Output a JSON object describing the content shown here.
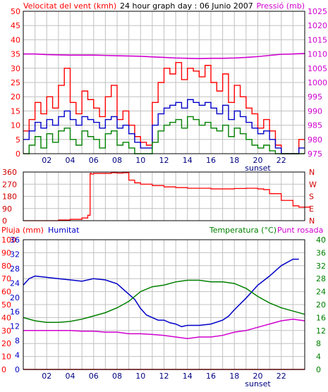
{
  "colors": {
    "background": "#ffffff",
    "frame": "#000000",
    "grid": "#c0c0c0",
    "red": "#ff0000",
    "red_dark": "#d00000",
    "blue": "#0000c8",
    "green": "#008000",
    "magenta": "#d000d0"
  },
  "chart_data": [
    {
      "type": "line",
      "title": "24 hour graph day : 06 Junio 2007",
      "ylabel_left": "Velocitat del vent (kmh)",
      "ylabel_right": "Pressió (mb)",
      "xticks": [
        "02",
        "04",
        "06",
        "08",
        "10",
        "12",
        "14",
        "16",
        "18",
        "20",
        "22"
      ],
      "x_marker": "sunset",
      "x_marker_hour": 20,
      "xlim": [
        0,
        24
      ],
      "ylim_left": [
        0,
        50
      ],
      "yticks_left": [
        0,
        5,
        10,
        15,
        20,
        25,
        30,
        35,
        40,
        45,
        50
      ],
      "ylim_right": [
        975,
        1025
      ],
      "yticks_right": [
        975,
        980,
        985,
        990,
        995,
        1000,
        1005,
        1010,
        1015,
        1020,
        1025
      ],
      "grid": true,
      "series": [
        {
          "axis": "left",
          "style": "gust",
          "color": "red",
          "x": [
            0,
            0.5,
            1,
            1.5,
            2,
            2.5,
            3,
            3.5,
            4,
            4.5,
            5,
            5.5,
            6,
            6.5,
            7,
            7.5,
            8,
            8.5,
            9,
            9.5,
            10,
            10.5,
            11,
            11.5,
            12,
            12.5,
            13,
            13.5,
            14,
            14.5,
            15,
            15.5,
            16,
            16.5,
            17,
            17.5,
            18,
            18.5,
            19,
            19.5,
            20,
            20.5,
            21,
            21.5,
            22,
            22.5,
            23,
            23.5
          ],
          "values": [
            8,
            12,
            18,
            14,
            20,
            16,
            24,
            30,
            18,
            14,
            22,
            19,
            16,
            13,
            20,
            24,
            12,
            15,
            10,
            6,
            4,
            3,
            18,
            25,
            30,
            28,
            32,
            26,
            30,
            29,
            27,
            31,
            25,
            22,
            28,
            18,
            24,
            20,
            16,
            14,
            9,
            12,
            8,
            3,
            0,
            0,
            0,
            5
          ]
        },
        {
          "axis": "left",
          "style": "average",
          "color": "blue",
          "x": [
            0,
            0.5,
            1,
            1.5,
            2,
            2.5,
            3,
            3.5,
            4,
            4.5,
            5,
            5.5,
            6,
            6.5,
            7,
            7.5,
            8,
            8.5,
            9,
            9.5,
            10,
            10.5,
            11,
            11.5,
            12,
            12.5,
            13,
            13.5,
            14,
            14.5,
            15,
            15.5,
            16,
            16.5,
            17,
            17.5,
            18,
            18.5,
            19,
            19.5,
            20,
            20.5,
            21,
            21.5,
            22,
            22.5,
            23,
            23.5
          ],
          "values": [
            5,
            8,
            11,
            9,
            12,
            10,
            13,
            15,
            12,
            10,
            13,
            12,
            11,
            9,
            12,
            13,
            9,
            10,
            7,
            4,
            2,
            2,
            10,
            14,
            16,
            17,
            18,
            16,
            19,
            18,
            17,
            18,
            16,
            14,
            17,
            12,
            15,
            13,
            11,
            9,
            7,
            8,
            5,
            2,
            0,
            0,
            0,
            2
          ]
        },
        {
          "axis": "left",
          "style": "minimum",
          "color": "green",
          "x": [
            0,
            0.5,
            1,
            1.5,
            2,
            2.5,
            3,
            3.5,
            4,
            4.5,
            5,
            5.5,
            6,
            6.5,
            7,
            7.5,
            8,
            8.5,
            9,
            9.5,
            10,
            10.5,
            11,
            11.5,
            12,
            12.5,
            13,
            13.5,
            14,
            14.5,
            15,
            15.5,
            16,
            16.5,
            17,
            17.5,
            18,
            18.5,
            19,
            19.5,
            20,
            20.5,
            21,
            21.5,
            22,
            22.5,
            23,
            23.5
          ],
          "values": [
            0,
            3,
            6,
            2,
            7,
            4,
            8,
            9,
            5,
            3,
            8,
            6,
            5,
            2,
            7,
            8,
            3,
            4,
            2,
            0,
            0,
            0,
            4,
            8,
            10,
            11,
            12,
            9,
            13,
            12,
            10,
            11,
            9,
            8,
            10,
            6,
            9,
            7,
            5,
            3,
            2,
            3,
            1,
            0,
            0,
            0,
            0,
            0
          ]
        },
        {
          "axis": "right",
          "name": "Pressió (mb)",
          "color": "magenta",
          "x": [
            0,
            1,
            2,
            3,
            4,
            5,
            6,
            7,
            8,
            9,
            10,
            11,
            12,
            13,
            14,
            15,
            16,
            17,
            18,
            19,
            20,
            21,
            22,
            23,
            24
          ],
          "values": [
            1010,
            1010,
            1009.8,
            1009.7,
            1009.6,
            1009.6,
            1009.6,
            1009.5,
            1009.4,
            1009.3,
            1009.2,
            1009,
            1008.8,
            1008.6,
            1008.5,
            1008.4,
            1008.5,
            1008.5,
            1008.6,
            1008.8,
            1009.1,
            1009.5,
            1009.9,
            1010,
            1010.2
          ]
        }
      ]
    },
    {
      "type": "line",
      "ylabel_left": "",
      "yticks_left": [
        "360",
        "270",
        "180",
        "90",
        "0"
      ],
      "yticks_right": [
        "N",
        "W",
        "S",
        "E",
        "N"
      ],
      "ylim": [
        0,
        360
      ],
      "xlim": [
        0,
        24
      ],
      "grid": true,
      "series": [
        {
          "color": "red",
          "x": [
            0,
            1,
            2,
            3,
            4,
            5,
            5.5,
            5.7,
            5.8,
            6,
            6.5,
            7,
            7.5,
            8,
            8.5,
            9,
            9.5,
            10,
            11,
            12,
            13,
            14,
            15,
            16,
            17,
            18,
            19,
            20,
            20.5,
            21,
            22,
            23,
            23.5
          ],
          "values": [
            0,
            0,
            0,
            5,
            10,
            20,
            40,
            350,
            345,
            350,
            350,
            350,
            355,
            352,
            355,
            300,
            280,
            270,
            260,
            250,
            245,
            240,
            240,
            235,
            235,
            238,
            240,
            235,
            230,
            200,
            150,
            110,
            100
          ]
        }
      ]
    },
    {
      "type": "line",
      "ylabel_left_1": "Pluja (mm)",
      "ylabel_left_2": "Humitat",
      "ylabel_right_1": "Temperatura (°C)",
      "ylabel_right_2": "Punt rosada",
      "xticks": [
        "02",
        "04",
        "06",
        "08",
        "10",
        "12",
        "14",
        "16",
        "18",
        "20",
        "22"
      ],
      "x_marker": "sunset",
      "x_marker_hour": 20,
      "xlim": [
        0,
        24
      ],
      "yticks_left_rain": [
        0,
        10,
        20,
        30,
        40,
        50,
        60,
        70,
        80,
        90,
        100
      ],
      "yticks_left_hum": [
        0,
        4,
        8,
        12,
        16,
        20,
        24,
        28,
        32,
        36
      ],
      "yticks_right": [
        0,
        4,
        8,
        12,
        16,
        20,
        24,
        28,
        32,
        36,
        40
      ],
      "ylim_rain": [
        0,
        10
      ],
      "ylim_hum": [
        0,
        100
      ],
      "ylim_temp": [
        0,
        40
      ],
      "grid": true,
      "series": [
        {
          "name": "Humitat",
          "axis": "hum",
          "color": "blue",
          "x": [
            0,
            0.5,
            1,
            2,
            3,
            4,
            5,
            6,
            7,
            8,
            9,
            9.5,
            10,
            10.5,
            11,
            11.5,
            12,
            12.5,
            13,
            13.5,
            14,
            15,
            16,
            17,
            17.5,
            18,
            19,
            19.5,
            20,
            21,
            22,
            23,
            23.5
          ],
          "values": [
            65,
            70,
            72,
            71,
            70,
            69,
            68,
            70,
            69,
            66,
            58,
            54,
            47,
            42,
            40,
            38,
            38,
            36,
            35,
            33,
            34,
            34,
            35,
            38,
            41,
            46,
            55,
            60,
            65,
            72,
            80,
            85,
            85
          ]
        },
        {
          "name": "Temperatura (°C)",
          "axis": "temp",
          "color": "green",
          "x": [
            0,
            1,
            2,
            3,
            4,
            5,
            6,
            7,
            8,
            9,
            10,
            11,
            12,
            13,
            14,
            15,
            16,
            17,
            18,
            19,
            20,
            21,
            22,
            23,
            24
          ],
          "values": [
            16,
            15,
            14.5,
            14.5,
            14.8,
            15.5,
            16.5,
            17.5,
            19,
            21,
            24,
            25.5,
            26,
            27,
            27.5,
            27.5,
            27,
            27,
            26.5,
            25,
            22.5,
            20.5,
            19,
            18,
            17
          ]
        },
        {
          "name": "Punt rosada",
          "axis": "temp",
          "color": "magenta",
          "x": [
            0,
            1,
            2,
            3,
            4,
            5,
            6,
            7,
            8,
            9,
            10,
            11,
            12,
            13,
            14,
            15,
            16,
            17,
            18,
            19,
            20,
            21,
            22,
            23,
            24
          ],
          "values": [
            12,
            12,
            12,
            12,
            12,
            11.8,
            11.8,
            11.5,
            11.5,
            11,
            11,
            10.8,
            10.5,
            10,
            9.5,
            10,
            10,
            10.5,
            11.5,
            12,
            13,
            14,
            15,
            15.5,
            15
          ]
        },
        {
          "name": "Pluja (mm)",
          "axis": "rain",
          "color": "red",
          "x": [
            0,
            24
          ],
          "values": [
            0,
            0
          ]
        }
      ]
    }
  ]
}
